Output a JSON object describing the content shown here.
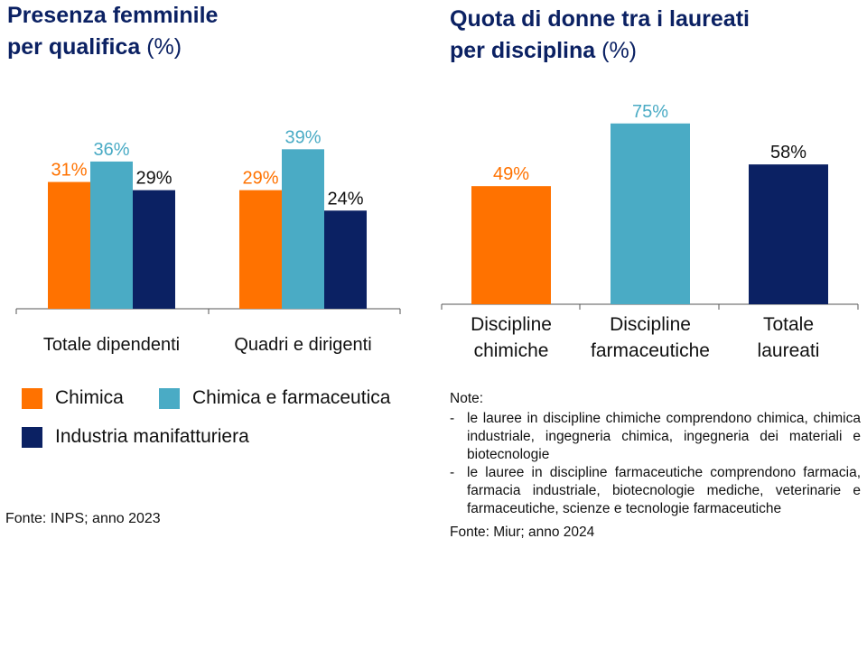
{
  "colors": {
    "chimica": "#ff7200",
    "chimica_farmaceutica": "#4aabc5",
    "industria": "#0b2163",
    "title": "#0b2163",
    "axis": "#555555"
  },
  "left": {
    "title_line1": "Presenza femminile",
    "title_line2": "per qualifica",
    "title_unit": "(%)",
    "source": "Fonte: INPS; anno 2023"
  },
  "right": {
    "title_line1": "Quota di donne tra i laureati",
    "title_line2": "per disciplina",
    "title_unit": "(%)",
    "note_heading": "Note:",
    "notes": [
      "le lauree in discipline chimiche comprendono chimica, chimica industriale, ingegneria chimica, ingegneria dei materiali e biotecnologie",
      "le lauree in discipline farmaceutiche comprendono farmacia, farmacia industriale, biotecnologie mediche, veterinarie e farmaceutiche, scienze e tecnologie farmaceutiche"
    ],
    "source": "Fonte: Miur; anno 2024"
  },
  "chart_data": [
    {
      "type": "bar",
      "title": "Presenza femminile per qualifica (%)",
      "categories": [
        "Totale dipendenti",
        "Quadri e dirigenti"
      ],
      "series": [
        {
          "name": "Chimica",
          "color": "#ff7200",
          "values": [
            31,
            29
          ],
          "labels": [
            "31%",
            "29%"
          ]
        },
        {
          "name": "Chimica e farmaceutica",
          "color": "#4aabc5",
          "values": [
            36,
            39
          ],
          "labels": [
            "36%",
            "39%"
          ]
        },
        {
          "name": "Industria manifatturiera",
          "color": "#0b2163",
          "values": [
            29,
            24
          ],
          "labels": [
            "29%",
            "24%"
          ]
        }
      ],
      "ylim": [
        0,
        45
      ],
      "legend": "bottom"
    },
    {
      "type": "bar",
      "title": "Quota di donne tra i laureati per disciplina (%)",
      "categories": [
        [
          "Discipline",
          "chimiche"
        ],
        [
          "Discipline",
          "farmaceutiche"
        ],
        [
          "Totale",
          "laureati"
        ]
      ],
      "values": [
        49,
        75,
        58
      ],
      "labels": [
        "49%",
        "75%",
        "58%"
      ],
      "colors": [
        "#ff7200",
        "#4aabc5",
        "#0b2163"
      ],
      "ylim": [
        0,
        80
      ]
    }
  ]
}
